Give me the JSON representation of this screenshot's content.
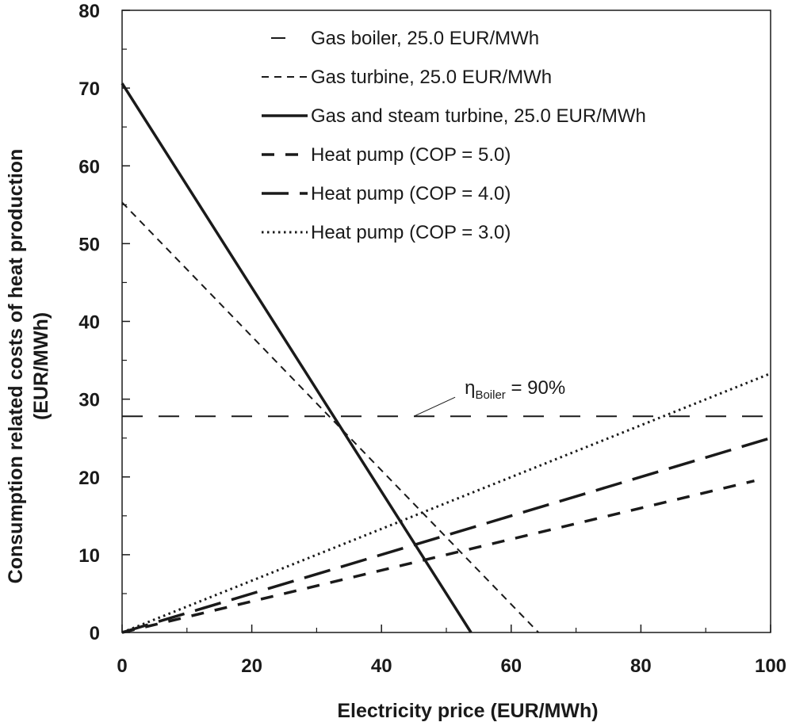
{
  "chart_data": {
    "type": "line",
    "xlabel": "Electricity price (EUR/MWh)",
    "ylabel_line1": "Consumption related costs of heat production",
    "ylabel_line2": "(EUR/MWh)",
    "xlim": [
      0,
      100
    ],
    "ylim": [
      0,
      80
    ],
    "x_ticks": [
      0,
      20,
      40,
      60,
      80,
      100
    ],
    "y_ticks": [
      0,
      10,
      20,
      30,
      40,
      50,
      60,
      70,
      80
    ],
    "grid": false,
    "legend_position": "top-right",
    "series": [
      {
        "name": "Gas boiler, 25.0 EUR/MWh",
        "style": "longdash",
        "width": 2,
        "x": [
          0,
          100
        ],
        "y": [
          27.8,
          27.8
        ]
      },
      {
        "name": "Gas turbine, 25.0 EUR/MWh",
        "style": "shortdash",
        "width": 2,
        "x": [
          0,
          64.2
        ],
        "y": [
          55.3,
          0
        ]
      },
      {
        "name": "Gas and steam turbine, 25.0 EUR/MWh",
        "style": "solid",
        "width": 3.5,
        "x": [
          0,
          53.8
        ],
        "y": [
          70.6,
          0
        ]
      },
      {
        "name": "Heat pump (COP = 5.0)",
        "style": "dash",
        "width": 3.5,
        "x": [
          0,
          97.5
        ],
        "y": [
          0,
          19.5
        ]
      },
      {
        "name": "Heat pump (COP = 4.0)",
        "style": "longdash-bold",
        "width": 3.5,
        "x": [
          0,
          100
        ],
        "y": [
          0,
          25
        ]
      },
      {
        "name": "Heat pump (COP = 3.0)",
        "style": "dotted",
        "width": 3,
        "x": [
          0,
          100
        ],
        "y": [
          0,
          33.3
        ]
      }
    ],
    "annotation": {
      "symbol": "η",
      "subscript": "Boiler",
      "text": " = 90%",
      "x": 45,
      "y": 27.8
    }
  }
}
